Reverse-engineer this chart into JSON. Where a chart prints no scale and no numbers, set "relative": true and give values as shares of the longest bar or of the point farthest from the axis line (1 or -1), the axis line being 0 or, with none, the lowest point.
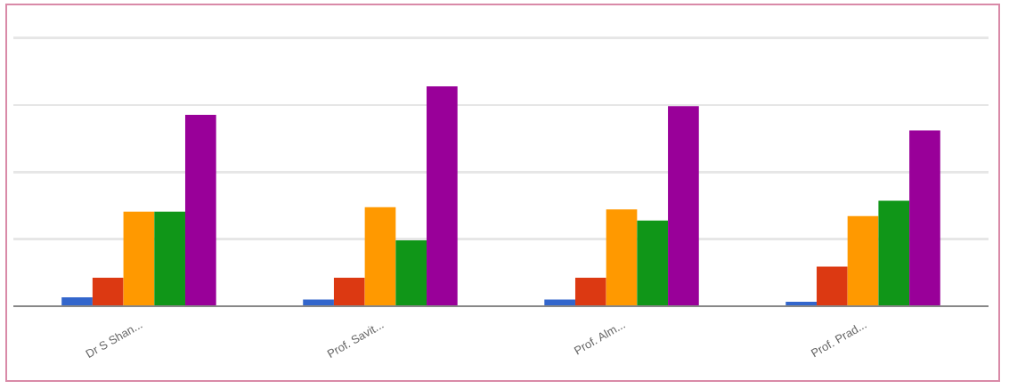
{
  "chart_data": {
    "type": "bar",
    "relative": true,
    "legend": false,
    "ref_lines": [
      {
        "axis": "y",
        "value": 0.305,
        "color": "#e6e6e6"
      },
      {
        "axis": "y",
        "value": 0.61,
        "color": "#e6e6e6"
      },
      {
        "axis": "y",
        "value": 0.915,
        "color": "#e6e6e6"
      },
      {
        "axis": "y",
        "value": 1.22,
        "color": "#e6e6e6"
      }
    ],
    "categories": [
      "Dr S Shan...",
      "Prof. Savit...",
      "Prof. Alm...",
      "Prof. Prad..."
    ],
    "series": [
      {
        "color": "#3366cc",
        "values": [
          0.04,
          0.03,
          0.03,
          0.02
        ]
      },
      {
        "color": "#dc3912",
        "values": [
          0.13,
          0.13,
          0.13,
          0.18
        ]
      },
      {
        "color": "#ff9900",
        "values": [
          0.43,
          0.45,
          0.44,
          0.41
        ]
      },
      {
        "color": "#109618",
        "values": [
          0.43,
          0.3,
          0.39,
          0.48
        ]
      },
      {
        "color": "#990099",
        "values": [
          0.87,
          1.0,
          0.91,
          0.8
        ]
      }
    ]
  }
}
